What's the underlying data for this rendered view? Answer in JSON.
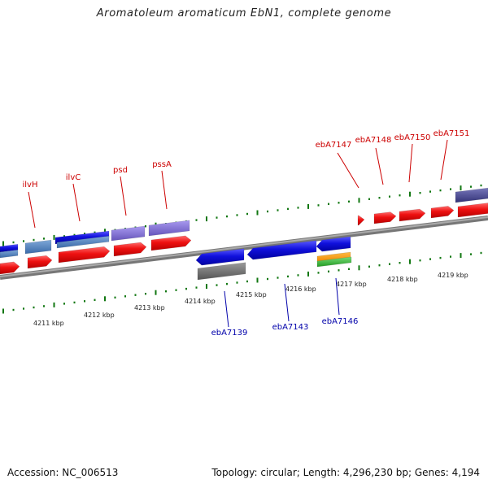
{
  "title": "Aromatoleum aromaticum EbN1, complete genome",
  "footer": {
    "accession": "Accession: NC_006513",
    "summary": "Topology: circular; Length: 4,296,230 bp; Genes: 4,194"
  },
  "colors": {
    "top_gene_label": "#cc0000",
    "bottom_gene_label": "#0000aa",
    "forward_cds": "#ee1111",
    "reverse_cds": "#1111dd",
    "gene_bar_blue": "#4477bb",
    "gene_bar_violet": "#7766cc",
    "gene_bar_grey": "#666666",
    "gene_bar_navy": "#444488",
    "gene_bar_orange": "#ff9900",
    "gene_bar_green": "#33bb33",
    "backbone": "#888888",
    "tick": "#117711"
  },
  "axis_ticks": [
    {
      "label": "4211 kbp"
    },
    {
      "label": "4212 kbp"
    },
    {
      "label": "4213 kbp"
    },
    {
      "label": "4214 kbp"
    },
    {
      "label": "4215 kbp"
    },
    {
      "label": "4216 kbp"
    },
    {
      "label": "4217 kbp"
    },
    {
      "label": "4218 kbp"
    },
    {
      "label": "4219 kbp"
    }
  ],
  "top_gene_labels": [
    "ilvH",
    "ilvC",
    "psd",
    "pssA",
    "ebA7147",
    "ebA7148",
    "ebA7150",
    "ebA7151"
  ],
  "bottom_gene_labels": [
    "ebA7139",
    "ebA7143",
    "ebA7146"
  ]
}
